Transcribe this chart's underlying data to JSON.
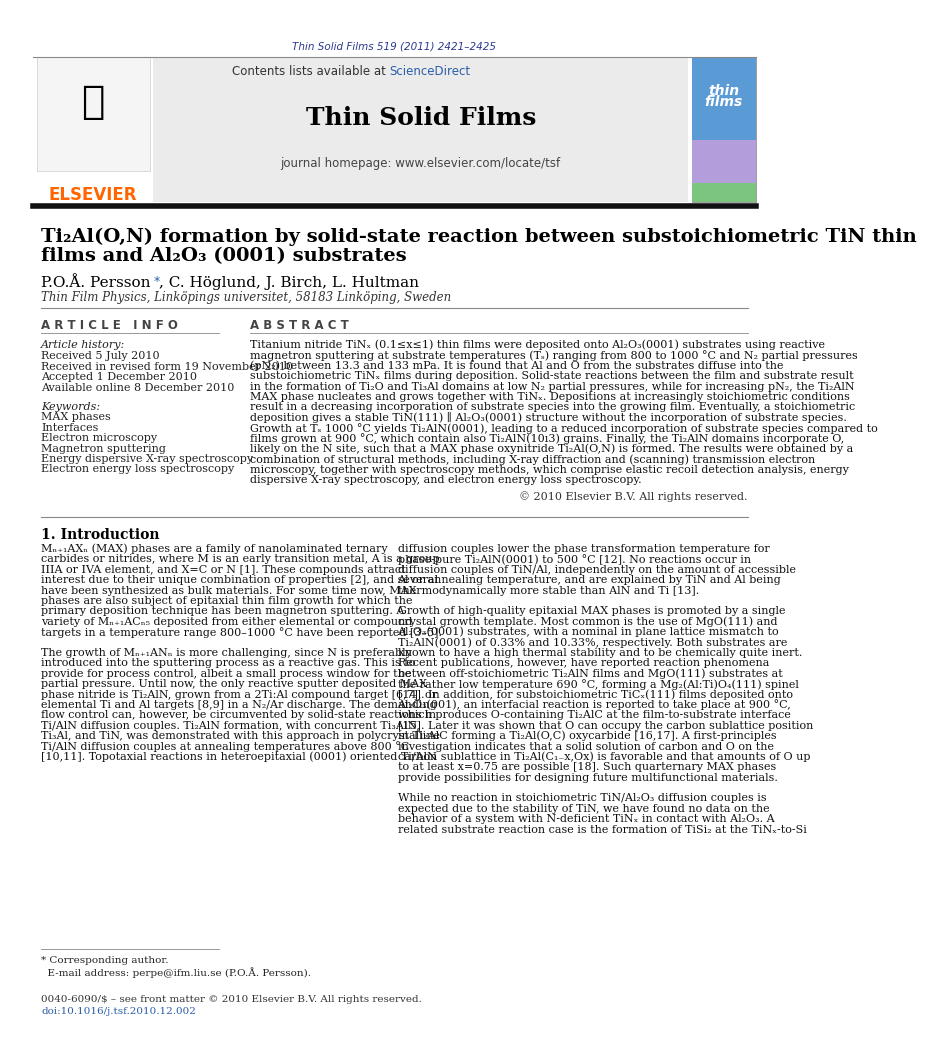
{
  "page_title_journal": "Thin Solid Films 519 (2011) 2421–2425",
  "journal_name": "Thin Solid Films",
  "journal_homepage": "journal homepage: www.elsevier.com/locate/tsf",
  "contents_line": "Contents lists available at ScienceDirect",
  "paper_title_line1": "Ti₂Al(O,N) formation by solid-state reaction between substoichiometric TiN thin",
  "paper_title_line2": "films and Al₂O₃ (0001) substrates",
  "authors": "P.O.Å. Persson *, C. Höglund, J. Birch, L. Hultman",
  "affiliation": "Thin Film Physics, Linköpings universitet, 58183 Linköping, Sweden",
  "article_info_header": "A R T I C L E   I N F O",
  "abstract_header": "A B S T R A C T",
  "article_history_label": "Article history:",
  "received": "Received 5 July 2010",
  "revised": "Received in revised form 19 November 2010",
  "accepted": "Accepted 1 December 2010",
  "available": "Available online 8 December 2010",
  "keywords_label": "Keywords:",
  "keywords": [
    "MAX phases",
    "Interfaces",
    "Electron microscopy",
    "Magnetron sputtering",
    "Energy dispersive X-ray spectroscopy",
    "Electron energy loss spectroscopy"
  ],
  "copyright": "© 2010 Elsevier B.V. All rights reserved.",
  "intro_header": "1. Introduction",
  "footnote_line1": "* Corresponding author.",
  "footnote_line2": "  E-mail address: perpe@ifm.liu.se (P.O.Å. Persson).",
  "footer_text1": "0040-6090/$ – see front matter © 2010 Elsevier B.V. All rights reserved.",
  "footer_text2": "doi:10.1016/j.tsf.2010.12.002",
  "bg_color": "#ffffff",
  "journal_color": "#2b3990",
  "elsevier_color": "#ff6600",
  "link_color": "#2b5ea7",
  "text_color": "#000000"
}
